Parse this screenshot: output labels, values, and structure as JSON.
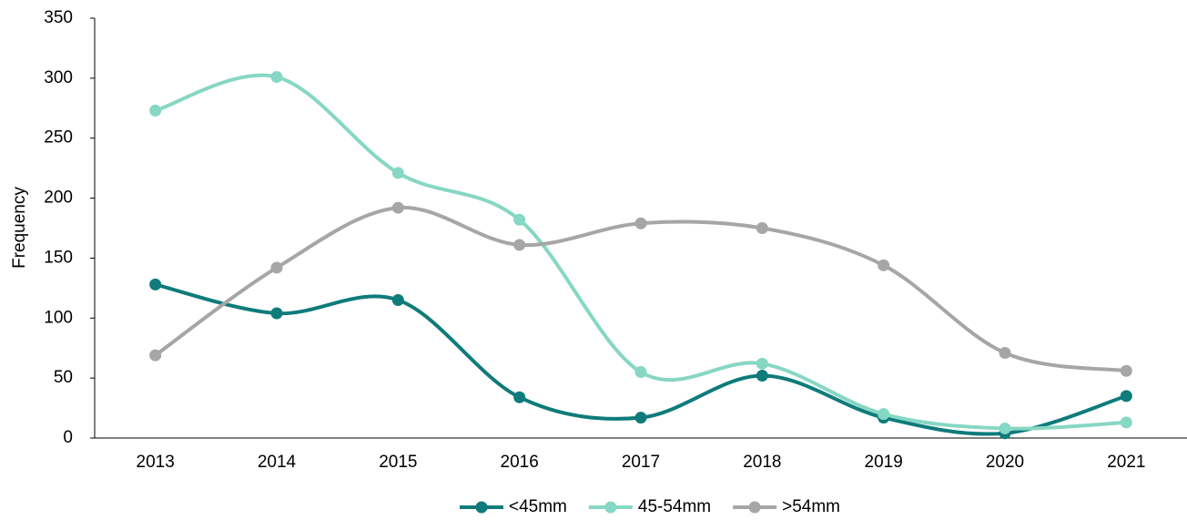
{
  "chart_data": {
    "type": "line",
    "y_label": "Frequency",
    "categories": [
      "2013",
      "2014",
      "2015",
      "2016",
      "2017",
      "2018",
      "2019",
      "2020",
      "2021"
    ],
    "series": [
      {
        "name": "<45mm",
        "color": "#0f7b7b",
        "values": [
          128,
          104,
          115,
          34,
          17,
          52,
          17,
          4,
          35
        ]
      },
      {
        "name": "45-54mm",
        "color": "#86d7c3",
        "values": [
          273,
          301,
          221,
          182,
          55,
          62,
          20,
          8,
          13
        ]
      },
      {
        "name": ">54mm",
        "color": "#a6a6a6",
        "values": [
          69,
          142,
          192,
          161,
          179,
          175,
          144,
          71,
          56
        ]
      }
    ],
    "ylim": [
      0,
      350
    ],
    "yticks": [
      0,
      50,
      100,
      150,
      200,
      250,
      300,
      350
    ],
    "smooth": true,
    "legend": "bottom"
  }
}
